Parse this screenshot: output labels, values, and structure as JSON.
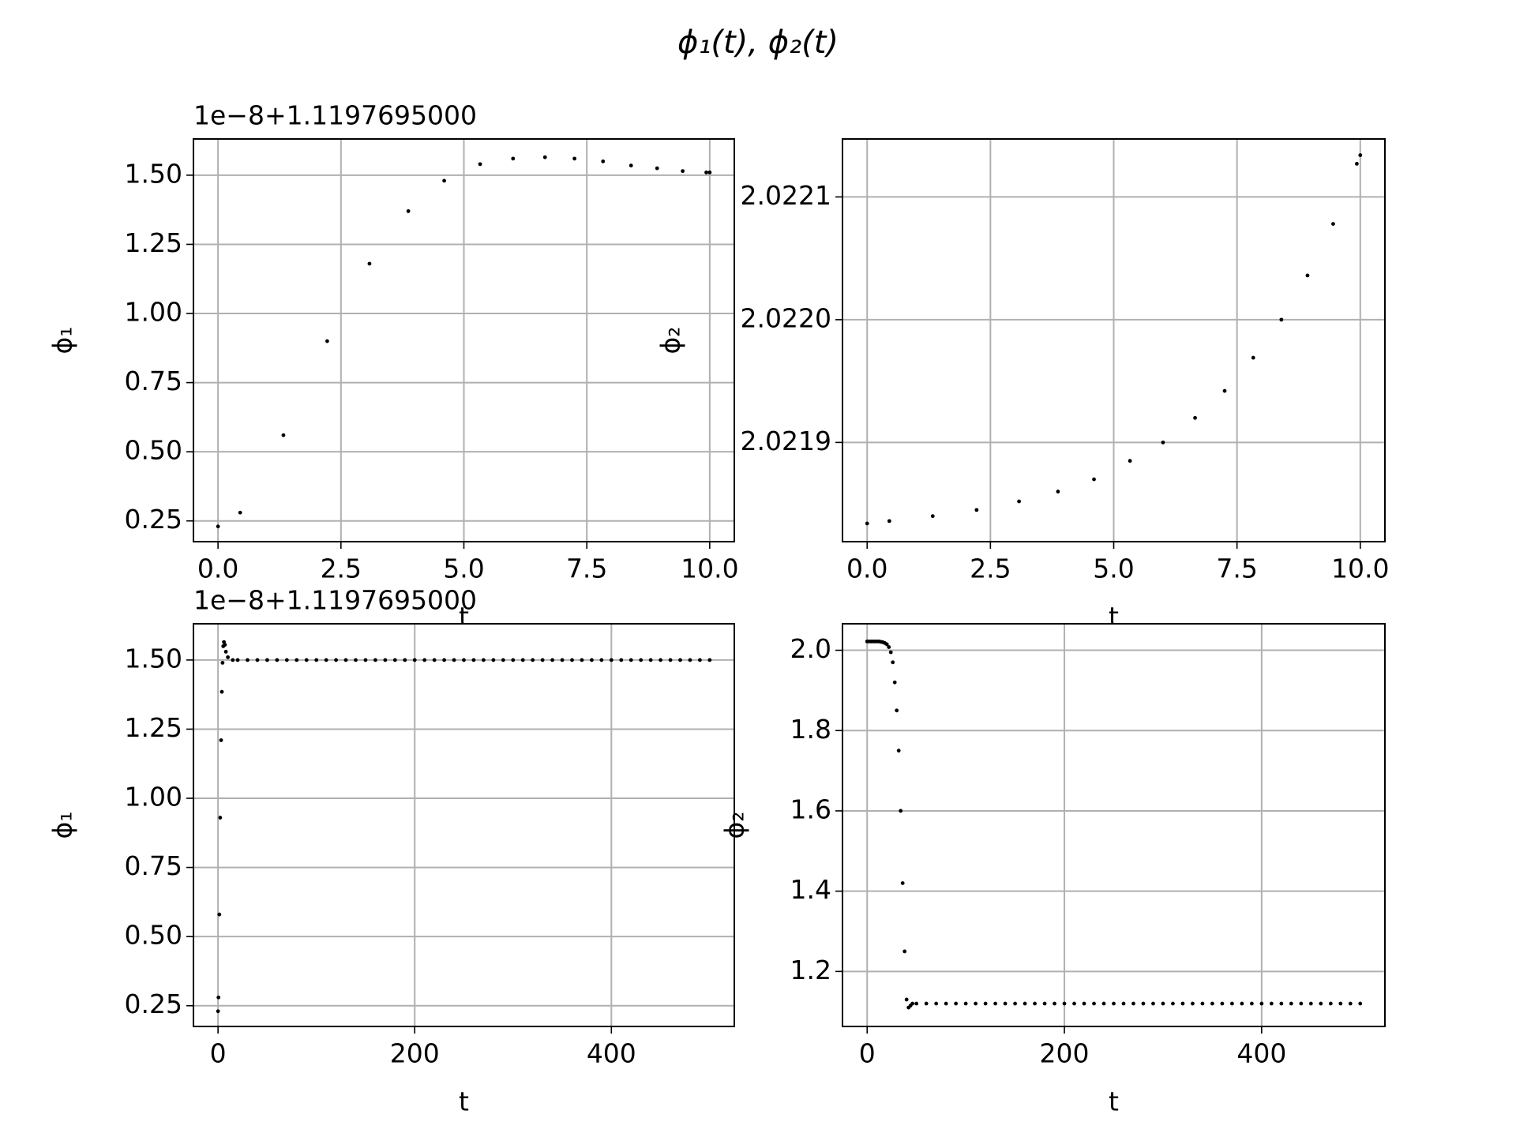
{
  "title": "ϕ₁(t), ϕ₂(t)",
  "chart_data": [
    {
      "type": "scatter",
      "offset_label": "1e−8+1.1197695000",
      "xlabel": "t",
      "ylabel": "ϕ₁",
      "color": "#000000",
      "grid": true,
      "x": [
        0,
        0.45,
        1.33,
        2.22,
        3.08,
        3.87,
        4.6,
        5.33,
        6.0,
        6.65,
        7.25,
        7.83,
        8.4,
        8.93,
        9.45,
        9.93,
        10.0
      ],
      "values": [
        0.23,
        0.28,
        0.56,
        0.9,
        1.18,
        1.37,
        1.48,
        1.54,
        1.56,
        1.565,
        1.56,
        1.55,
        1.535,
        1.525,
        1.515,
        1.51,
        1.51
      ],
      "xlim": [
        -0.5,
        10.5
      ],
      "ylim": [
        0.175,
        1.631
      ],
      "xticks": [
        {
          "value": 0,
          "label": "0.0"
        },
        2.5,
        {
          "value": 5,
          "label": "5.0"
        },
        7.5,
        {
          "value": 10,
          "label": "10.0"
        }
      ],
      "yticks": [
        0.25,
        {
          "value": 0.5,
          "label": "0.50"
        },
        0.75,
        {
          "value": 1,
          "label": "1.00"
        },
        1.25,
        {
          "value": 1.5,
          "label": "1.50"
        }
      ]
    },
    {
      "type": "scatter",
      "xlabel": "t",
      "ylabel": "ϕ₂",
      "color": "#000000",
      "grid": true,
      "x": [
        0,
        0.45,
        1.33,
        2.22,
        3.08,
        3.87,
        4.6,
        5.33,
        6.0,
        6.65,
        7.25,
        7.83,
        8.4,
        8.93,
        9.45,
        9.93,
        10.0
      ],
      "values": [
        2.021834,
        2.021836,
        2.02184,
        2.021845,
        2.021852,
        2.02186,
        2.02187,
        2.021885,
        2.0219,
        2.02192,
        2.021942,
        2.021969,
        2.022,
        2.022036,
        2.022078,
        2.022127,
        2.022134
      ],
      "xlim": [
        -0.5,
        10.5
      ],
      "ylim": [
        2.0218192,
        2.0221472
      ],
      "xticks": [
        {
          "value": 0,
          "label": "0.0"
        },
        2.5,
        {
          "value": 5,
          "label": "5.0"
        },
        7.5,
        {
          "value": 10,
          "label": "10.0"
        }
      ],
      "yticks": [
        2.0219,
        {
          "value": 2.022,
          "label": "2.0220"
        },
        2.0221
      ]
    },
    {
      "type": "scatter",
      "offset_label": "1e−8+1.1197695000",
      "xlabel": "t",
      "ylabel": "ϕ₁",
      "color": "#000000",
      "grid": true,
      "x": [
        0,
        0.45,
        1.33,
        2.2,
        3.1,
        3.9,
        4.6,
        5.3,
        6,
        7,
        8,
        10,
        15,
        20,
        30,
        40,
        50,
        60,
        70,
        80,
        90,
        100,
        110,
        120,
        130,
        140,
        150,
        160,
        170,
        180,
        190,
        200,
        210,
        220,
        230,
        240,
        250,
        260,
        270,
        280,
        290,
        300,
        310,
        320,
        330,
        340,
        350,
        360,
        370,
        380,
        390,
        400,
        410,
        420,
        430,
        440,
        450,
        460,
        470,
        480,
        490,
        500
      ],
      "values": [
        0.23,
        0.28,
        0.58,
        0.93,
        1.21,
        1.385,
        1.49,
        1.55,
        1.565,
        1.555,
        1.53,
        1.51,
        1.5,
        1.5,
        1.5,
        1.5,
        1.5,
        1.5,
        1.5,
        1.5,
        1.5,
        1.5,
        1.5,
        1.5,
        1.5,
        1.5,
        1.5,
        1.5,
        1.5,
        1.5,
        1.5,
        1.5,
        1.5,
        1.5,
        1.5,
        1.5,
        1.5,
        1.5,
        1.5,
        1.5,
        1.5,
        1.5,
        1.5,
        1.5,
        1.5,
        1.5,
        1.5,
        1.5,
        1.5,
        1.5,
        1.5,
        1.5,
        1.5,
        1.5,
        1.5,
        1.5,
        1.5,
        1.5,
        1.5,
        1.5,
        1.5,
        1.5
      ],
      "xlim": [
        -25,
        525
      ],
      "ylim": [
        0.175,
        1.631
      ],
      "xticks": [
        0,
        200,
        400
      ],
      "yticks": [
        0.25,
        {
          "value": 0.5,
          "label": "0.50"
        },
        0.75,
        {
          "value": 1,
          "label": "1.00"
        },
        1.25,
        {
          "value": 1.5,
          "label": "1.50"
        }
      ]
    },
    {
      "type": "scatter",
      "xlabel": "t",
      "ylabel": "ϕ₂",
      "color": "#000000",
      "grid": true,
      "x": [
        0,
        2,
        4,
        6,
        8,
        10,
        12,
        14,
        16,
        18,
        20,
        22,
        24,
        26,
        28,
        30,
        32,
        34,
        36,
        38,
        40,
        42,
        44,
        46,
        50,
        60,
        70,
        80,
        90,
        100,
        110,
        120,
        130,
        140,
        150,
        160,
        170,
        180,
        190,
        200,
        210,
        220,
        230,
        240,
        250,
        260,
        270,
        280,
        290,
        300,
        310,
        320,
        330,
        340,
        350,
        360,
        370,
        380,
        390,
        400,
        410,
        420,
        430,
        440,
        450,
        460,
        470,
        480,
        490,
        500
      ],
      "values": [
        2.022,
        2.022,
        2.022,
        2.022,
        2.022,
        2.022,
        2.022,
        2.021,
        2.02,
        2.018,
        2.015,
        2.008,
        1.995,
        1.97,
        1.92,
        1.85,
        1.75,
        1.6,
        1.42,
        1.25,
        1.13,
        1.11,
        1.115,
        1.12,
        1.12,
        1.12,
        1.12,
        1.12,
        1.12,
        1.12,
        1.12,
        1.12,
        1.12,
        1.12,
        1.12,
        1.12,
        1.12,
        1.12,
        1.12,
        1.12,
        1.12,
        1.12,
        1.12,
        1.12,
        1.12,
        1.12,
        1.12,
        1.12,
        1.12,
        1.12,
        1.12,
        1.12,
        1.12,
        1.12,
        1.12,
        1.12,
        1.12,
        1.12,
        1.12,
        1.12,
        1.12,
        1.12,
        1.12,
        1.12,
        1.12,
        1.12,
        1.12,
        1.12,
        1.12,
        1.12
      ],
      "xlim": [
        -25,
        525
      ],
      "ylim": [
        1.063,
        2.066
      ],
      "xticks": [
        0,
        200,
        400
      ],
      "yticks": [
        1.2,
        1.4,
        1.6,
        1.8,
        {
          "value": 2,
          "label": "2.0"
        }
      ]
    }
  ]
}
